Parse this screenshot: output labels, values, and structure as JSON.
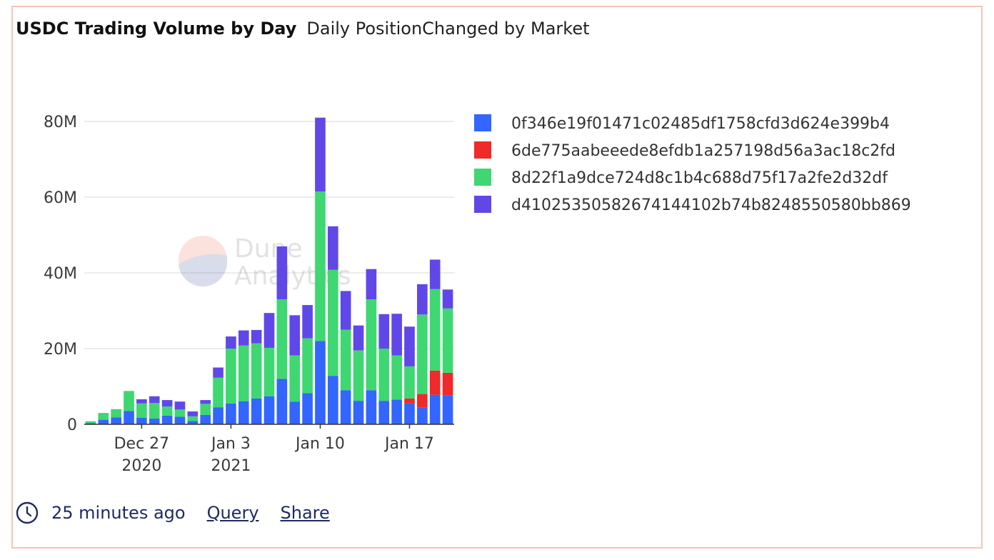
{
  "header": {
    "title": "USDC Trading Volume by Day",
    "subtitle": "Daily PositionChanged by Market"
  },
  "watermark": {
    "line1": "Dune",
    "line2": "Analytics"
  },
  "footer": {
    "clock_icon": "clock-icon",
    "time_ago": "25 minutes ago",
    "query_link": "Query",
    "share_link": "Share"
  },
  "colors": {
    "border": "#f6c4b8",
    "link": "#1f2a66",
    "grid": "#e5e5e5"
  },
  "chart_data": {
    "type": "bar",
    "stacked": true,
    "title": "",
    "xlabel": "",
    "ylabel": "",
    "ylim": [
      0,
      80000000
    ],
    "yticks": [
      0,
      20000000,
      40000000,
      60000000,
      80000000
    ],
    "ytick_labels": [
      "0",
      "20M",
      "40M",
      "60M",
      "80M"
    ],
    "x": [
      "2020-12-23",
      "2020-12-24",
      "2020-12-25",
      "2020-12-26",
      "2020-12-27",
      "2020-12-28",
      "2020-12-29",
      "2020-12-30",
      "2020-12-31",
      "2021-01-01",
      "2021-01-02",
      "2021-01-03",
      "2021-01-04",
      "2021-01-05",
      "2021-01-06",
      "2021-01-07",
      "2021-01-08",
      "2021-01-09",
      "2021-01-10",
      "2021-01-11",
      "2021-01-12",
      "2021-01-13",
      "2021-01-14",
      "2021-01-15",
      "2021-01-16",
      "2021-01-17",
      "2021-01-18",
      "2021-01-19",
      "2021-01-20"
    ],
    "xtick_labels": [
      {
        "date": "2020-12-27",
        "line1": "Dec 27",
        "line2": "2020"
      },
      {
        "date": "2021-01-03",
        "line1": "Jan 3",
        "line2": "2021"
      },
      {
        "date": "2021-01-10",
        "line1": "Jan 10",
        "line2": ""
      },
      {
        "date": "2021-01-17",
        "line1": "Jan 17",
        "line2": ""
      }
    ],
    "legend_position": "right",
    "series": [
      {
        "name": "0f346e19f01471c02485df1758cfd3d624e399b4",
        "color": "#3366ff",
        "values": [
          0.3,
          1.2,
          1.8,
          3.5,
          1.7,
          1.5,
          2.3,
          2.0,
          0.9,
          2.5,
          4.5,
          5.5,
          6.1,
          6.8,
          7.4,
          12,
          6,
          8.2,
          22,
          12.8,
          9,
          6.2,
          9,
          6.2,
          6.5,
          5.5,
          4.5,
          7.8,
          7.6
        ]
      },
      {
        "name": "6de775aabeeede8efdb1a257198d56a3ac18c2fd",
        "color": "#ee2a2a",
        "values": [
          0,
          0,
          0,
          0,
          0,
          0,
          0,
          0,
          0,
          0,
          0,
          0,
          0,
          0,
          0,
          0,
          0,
          0,
          0,
          0,
          0,
          0,
          0,
          0,
          0,
          1.3,
          3.5,
          6.4,
          6
        ]
      },
      {
        "name": "8d22f1a9dce724d8c1b4c688d75f17a2fe2d32df",
        "color": "#3ed771",
        "values": [
          0.5,
          1.8,
          2.2,
          5.3,
          3.8,
          4.1,
          2.4,
          1.9,
          1.2,
          2.9,
          7.8,
          14.5,
          14.7,
          14.6,
          12.8,
          21,
          12.2,
          14.5,
          39.5,
          28,
          16,
          13.3,
          24,
          13.8,
          11.7,
          8.5,
          21,
          21.5,
          17
        ]
      },
      {
        "name": "d4102535058267414410 2b74b8248550580bb869",
        "color": "#6048e8",
        "values": [
          0,
          0,
          0,
          0,
          1.1,
          1.8,
          1.7,
          2.1,
          1.3,
          1.0,
          2.7,
          3.2,
          4,
          3.5,
          9.2,
          14,
          10.6,
          8.8,
          19.5,
          11.5,
          10.2,
          6.6,
          8,
          9.1,
          11,
          10.5,
          8,
          7.8,
          5
        ]
      }
    ],
    "value_unit": "M"
  }
}
